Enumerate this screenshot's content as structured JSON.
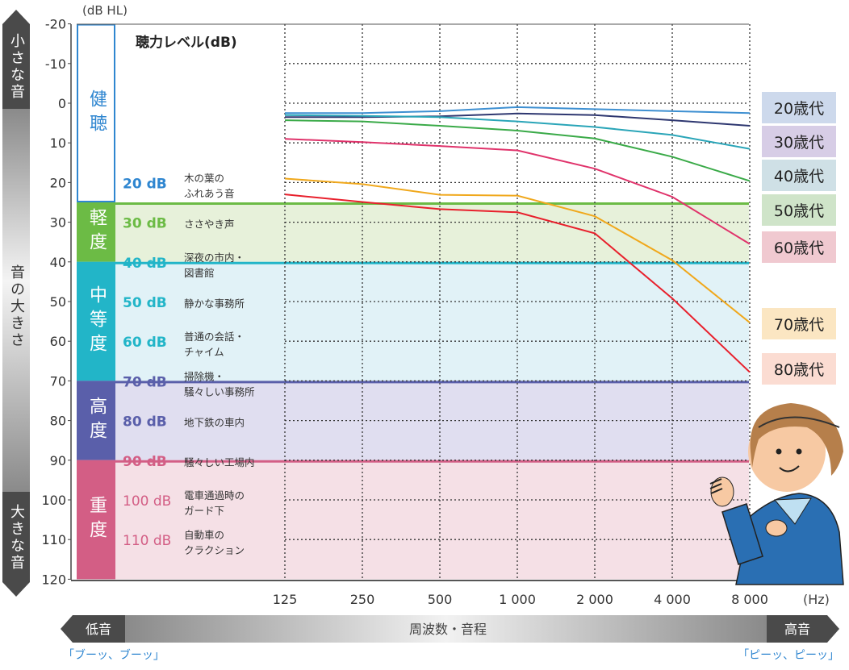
{
  "chart_data": {
    "type": "line",
    "title": "聴力レベル(dB)",
    "ylabel_unit": "(dB HL)",
    "xlabel_unit": "(Hz)",
    "x": [
      "125",
      "250",
      "500",
      "1 000",
      "2 000",
      "4 000",
      "8 000"
    ],
    "yticks": [
      "-20",
      "-10",
      "0",
      "10",
      "20",
      "30",
      "40",
      "50",
      "60",
      "70",
      "80",
      "90",
      "100",
      "110",
      "120"
    ],
    "ylim": [
      -20,
      120
    ],
    "y_inverted": true,
    "grid": true,
    "legend_placement": "right",
    "series": [
      {
        "name": "20歳代",
        "color": "#3d8fd1",
        "box": "#cdd9ec",
        "values": [
          2.5,
          2.5,
          2,
          1,
          1.5,
          2,
          2.5
        ]
      },
      {
        "name": "30歳代",
        "color": "#2e3770",
        "box": "#d7cde6",
        "values": [
          3.5,
          3.5,
          3.3,
          2.6,
          3,
          4.3,
          5.7
        ]
      },
      {
        "name": "40歳代",
        "color": "#2aa5b8",
        "box": "#cfe0e6",
        "values": [
          3,
          3.2,
          3.5,
          4.6,
          6,
          8,
          11.5
        ]
      },
      {
        "name": "50歳代",
        "color": "#3aaa48",
        "box": "#cfe4c9",
        "values": [
          4.3,
          4.6,
          5.7,
          6.9,
          8.9,
          13.5,
          19.6
        ]
      },
      {
        "name": "60歳代",
        "color": "#e0336b",
        "box": "#f0c9d0",
        "values": [
          9,
          9.8,
          10.8,
          11.9,
          16.5,
          23.6,
          35.5
        ]
      },
      {
        "name": "70歳代",
        "color": "#f0a81c",
        "box": "#fbe6c2",
        "values": [
          19,
          20.4,
          23.1,
          23.3,
          28.5,
          39.6,
          55.3
        ]
      },
      {
        "name": "80歳代",
        "color": "#e8202c",
        "box": "#fbdcd2",
        "values": [
          23,
          24.9,
          26.7,
          27.5,
          32.8,
          49.2,
          67.8
        ]
      }
    ],
    "bands": [
      {
        "label": "健聴",
        "from": -20,
        "to": 25,
        "color": "#2f86d0",
        "bg": "#ffffff",
        "examples": [
          {
            "level": "20 dB",
            "db": 20,
            "text": [
              "木の葉の",
              "ふれあう音"
            ]
          }
        ]
      },
      {
        "label": "軽度",
        "from": 25,
        "to": 40,
        "color": "#6cbb45",
        "bg": "#e7f1da",
        "examples": [
          {
            "level": "30 dB",
            "db": 30,
            "text": [
              "ささやき声"
            ]
          }
        ]
      },
      {
        "label": "中等度",
        "from": 40,
        "to": 70,
        "color": "#22b5c8",
        "bg": "#e1f2f7",
        "examples": [
          {
            "level": "40 dB",
            "db": 40,
            "text": [
              "深夜の市内・",
              "図書館"
            ]
          },
          {
            "level": "50 dB",
            "db": 50,
            "text": [
              "静かな事務所"
            ]
          },
          {
            "level": "60 dB",
            "db": 60,
            "text": [
              "普通の会話・",
              "チャイム"
            ]
          }
        ]
      },
      {
        "label": "高度",
        "from": 70,
        "to": 90,
        "color": "#5a5faa",
        "bg": "#e0def0",
        "examples": [
          {
            "level": "70 dB",
            "db": 70,
            "text": [
              "掃除機・",
              "騒々しい事務所"
            ]
          },
          {
            "level": "80 dB",
            "db": 80,
            "text": [
              "地下鉄の車内"
            ]
          }
        ]
      },
      {
        "label": "重度",
        "from": 90,
        "to": 120,
        "color": "#d35e85",
        "bg": "#f5e0e6",
        "examples": [
          {
            "level": "90 dB",
            "db": 90,
            "text": [
              "騒々しい工場内"
            ]
          },
          {
            "level": "100 dB",
            "db": 100,
            "text": [
              "電車通過時の",
              "ガード下"
            ]
          },
          {
            "level": "110 dB",
            "db": 110,
            "text": [
              "自動車の",
              "クラクション"
            ]
          }
        ]
      }
    ]
  },
  "loudness_axis": {
    "top": "小さな音",
    "middle": "音の大きさ",
    "bottom": "大きな音"
  },
  "frequency_axis": {
    "left": "低音",
    "middle": "周波数・音程",
    "right": "高音",
    "left_example": "「ブーッ、ブーッ」",
    "right_example": "「ピーッ、ピーッ」",
    "example_color": "#2f86d0"
  }
}
